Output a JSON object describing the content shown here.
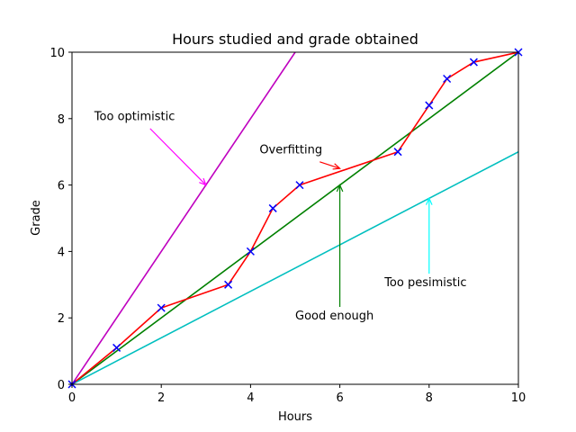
{
  "chart_data": {
    "type": "line",
    "title": "Hours studied and grade obtained",
    "xlabel": "Hours",
    "ylabel": "Grade",
    "xlim": [
      0,
      10
    ],
    "ylim": [
      0,
      10
    ],
    "xticks": [
      "0",
      "2",
      "4",
      "6",
      "8",
      "10"
    ],
    "yticks": [
      "0",
      "2",
      "4",
      "6",
      "8",
      "10"
    ],
    "grid": false,
    "points": {
      "x": [
        0,
        1,
        2,
        3.5,
        4,
        4.5,
        5.1,
        7.3,
        8,
        8.4,
        9,
        10
      ],
      "y": [
        0,
        1.1,
        2.3,
        3,
        4,
        5.3,
        6,
        7,
        8.4,
        9.2,
        9.7,
        10
      ],
      "marker": "x",
      "color": "#0000ff"
    },
    "series": [
      {
        "key": "optimistic",
        "type": "line",
        "color": "#bf00bf",
        "x": [
          0,
          5
        ],
        "y": [
          0,
          10
        ]
      },
      {
        "key": "good-enough",
        "type": "line",
        "color": "#008000",
        "x": [
          0,
          10
        ],
        "y": [
          0,
          10
        ]
      },
      {
        "key": "pessimistic",
        "type": "line",
        "color": "#00bfbf",
        "x": [
          0,
          10
        ],
        "y": [
          0,
          7
        ]
      },
      {
        "key": "overfitting",
        "type": "line",
        "color": "#ff0000",
        "x": [
          0,
          1,
          2,
          3.5,
          4,
          4.5,
          5.1,
          7.3,
          8,
          8.4,
          9,
          10
        ],
        "y": [
          0,
          1.1,
          2.3,
          3,
          4,
          5.3,
          6,
          7,
          8.4,
          9.2,
          9.7,
          10
        ]
      }
    ],
    "annotations": [
      {
        "key": "optimistic",
        "text": "Too optimistic",
        "text_at": [
          0.5,
          7.95
        ],
        "point_to": [
          3,
          6
        ],
        "color": "#ff00ff"
      },
      {
        "key": "overfitting",
        "text": "Overfitting",
        "text_at": [
          4.2,
          6.95
        ],
        "point_to": [
          6,
          6.5
        ],
        "color": "#ff0000"
      },
      {
        "key": "good-enough",
        "text": "Good enough",
        "text_at": [
          5,
          1.95
        ],
        "point_to": [
          6,
          6
        ],
        "color": "#008000"
      },
      {
        "key": "pessimistic",
        "text": "Too pesimistic",
        "text_at": [
          7,
          2.95
        ],
        "point_to": [
          8,
          5.6
        ],
        "color": "#00ffff"
      }
    ]
  }
}
